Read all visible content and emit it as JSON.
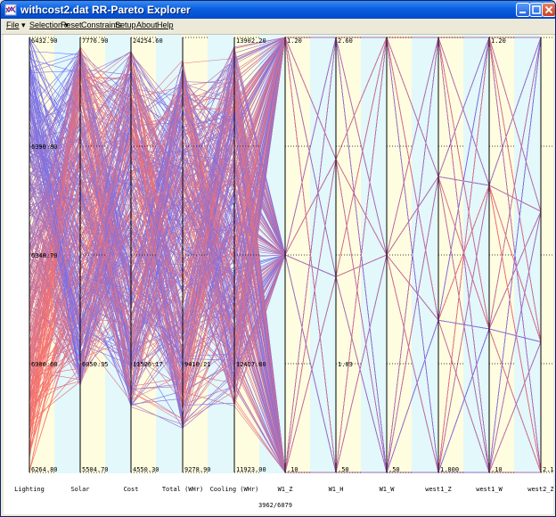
{
  "window": {
    "title": "withcost2.dat RR-Pareto Explorer",
    "icon": "app-icon",
    "controls": [
      "minimize-icon",
      "maximize-icon",
      "close-icon"
    ]
  },
  "menu": {
    "file": "File",
    "selection": "Selection",
    "reset": "Reset",
    "constraints": "Constraints",
    "setup": "Setup",
    "about": "About",
    "help": "Help"
  },
  "chart_data": {
    "type": "parallel-coordinates",
    "axes": [
      {
        "name": "Lighting",
        "min": "6264.80",
        "max": "6432.90",
        "ticks": [
          "6432.90",
          "6390.80",
          "6348.70",
          "6306.60",
          "6264.80"
        ]
      },
      {
        "name": "Solar",
        "min": "5504.70",
        "max": "7776.90",
        "ticks": [
          "7776.90",
          "",
          "",
          "6050.35",
          "5504.70"
        ]
      },
      {
        "name": "Cost",
        "min": "4550.30",
        "max": "24254.60",
        "ticks": [
          "24254.60",
          "",
          "",
          "11526.17",
          "4550.30"
        ]
      },
      {
        "name": "Total (WHr)",
        "min": "9278.90",
        "max": "",
        "ticks": [
          "",
          "",
          "",
          "9410.21",
          "9278.90"
        ]
      },
      {
        "name": "Cooling (WHr)",
        "min": "11923.00",
        "max": "13902.20",
        "ticks": [
          "13902.20",
          "",
          "",
          "12417.80",
          "11923.00"
        ]
      },
      {
        "name": "W1_Z",
        "min": ".10",
        "max": "1.20",
        "ticks": [
          "1.20",
          "",
          "",
          "",
          ".10"
        ]
      },
      {
        "name": "W1_H",
        "min": ".50",
        "max": "2.60",
        "ticks": [
          "2.60",
          "",
          "",
          "1.03",
          ".50"
        ]
      },
      {
        "name": "W1_W",
        "min": ".50",
        "max": "",
        "ticks": [
          "",
          "",
          "",
          "",
          ".50"
        ]
      },
      {
        "name": "west1_Z",
        "min": "1.800",
        "max": "",
        "ticks": [
          "",
          "",
          "",
          "",
          "1.800"
        ]
      },
      {
        "name": "west1_W",
        "min": ".10",
        "max": "1.20",
        "ticks": [
          "1.20",
          "",
          "",
          "",
          ".10"
        ]
      },
      {
        "name": "west2_Z",
        "min": "2.1",
        "max": "",
        "ticks": [
          "",
          "",
          "",
          "",
          "2.1"
        ]
      }
    ],
    "series_colors": {
      "low": "#ff0000",
      "high": "#0000ff"
    },
    "status": "3962/6079"
  }
}
